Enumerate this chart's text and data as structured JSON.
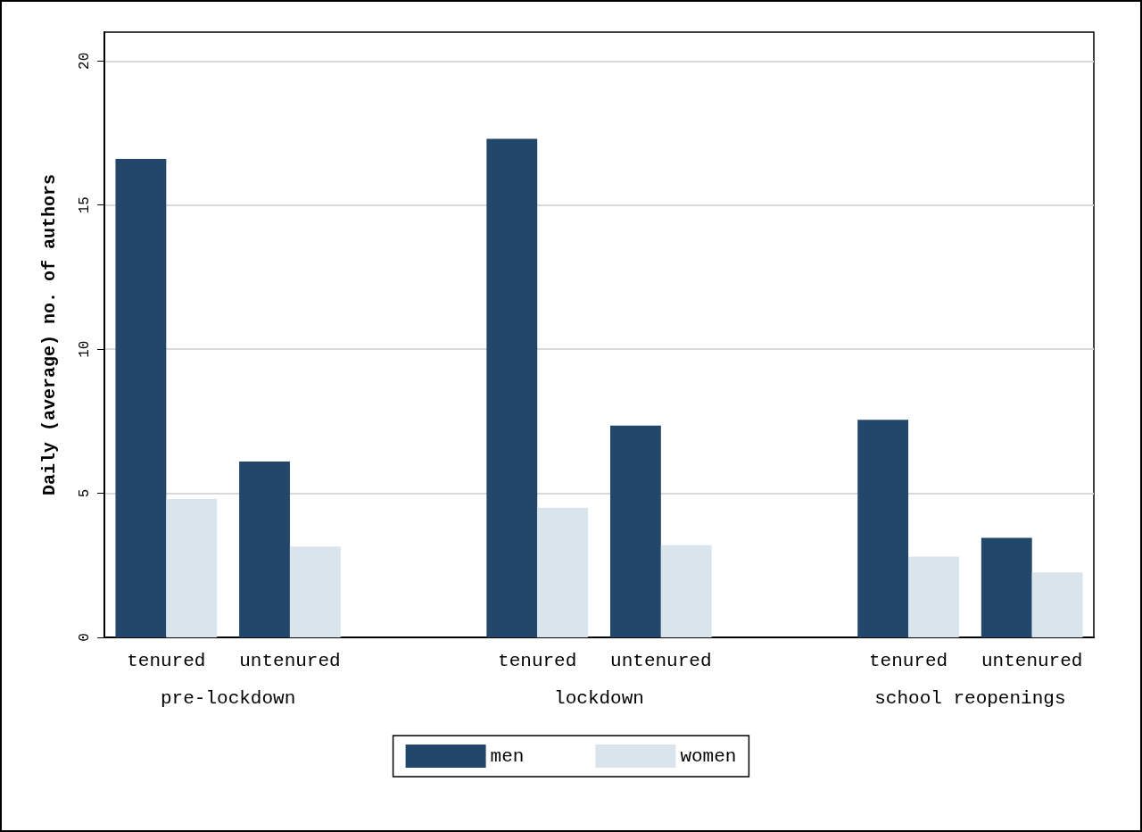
{
  "chart_data": {
    "type": "bar",
    "ylabel": "Daily (average) no. of authors",
    "categories": [
      "tenured",
      "untenured",
      null,
      "tenured",
      "untenured",
      null,
      "tenured",
      "untenured"
    ],
    "series": [
      {
        "name": "men",
        "color": "#23476b",
        "values": [
          16.6,
          6.1,
          null,
          17.3,
          7.35,
          null,
          7.55,
          3.45
        ]
      },
      {
        "name": "women",
        "color": "#d9e4ed",
        "values": [
          4.8,
          3.15,
          null,
          4.5,
          3.2,
          null,
          2.8,
          2.25
        ]
      }
    ],
    "annotations": [
      "pre-lockdown",
      "lockdown",
      "school reopenings"
    ],
    "ylim": [
      0,
      21
    ],
    "yticks": [
      0,
      5,
      10,
      15,
      20
    ],
    "grid": "y",
    "legend": "bottom"
  }
}
